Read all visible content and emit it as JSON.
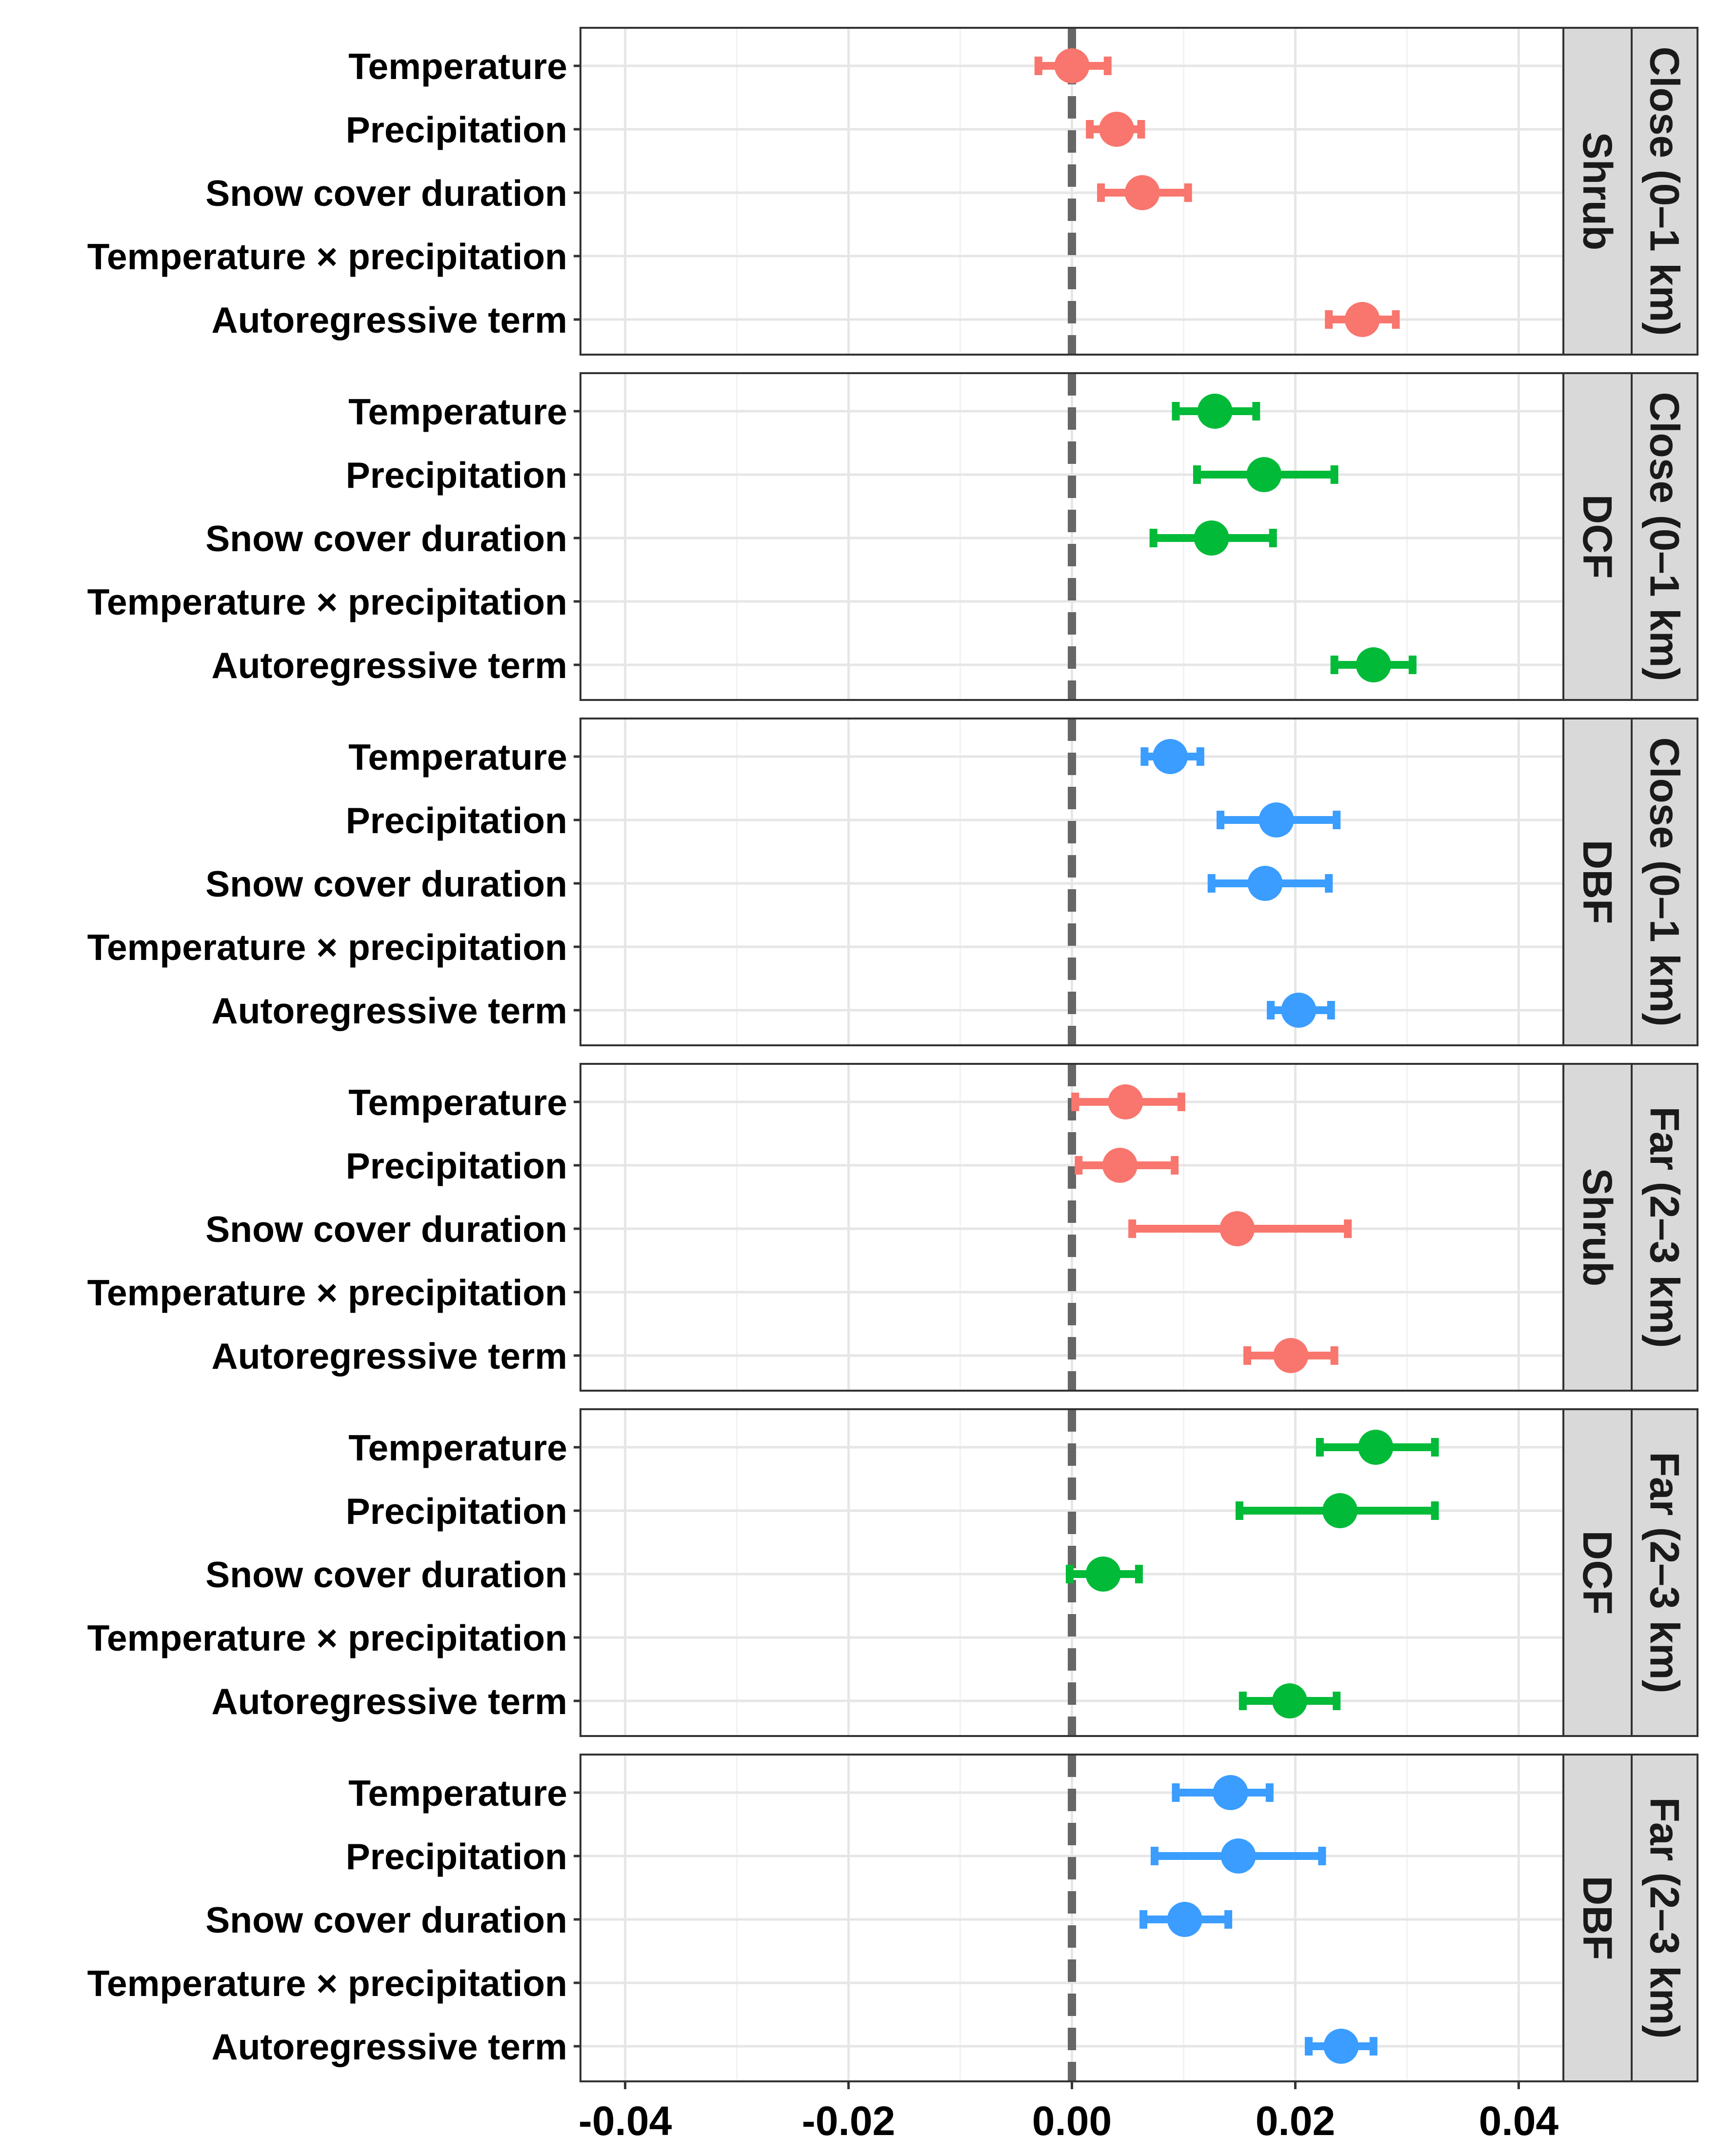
{
  "chart_data": {
    "type": "forest",
    "xlim": [
      -0.044,
      0.044
    ],
    "x_ticks": [
      -0.04,
      -0.02,
      0.0,
      0.02,
      0.04
    ],
    "x_tick_labels": [
      "-0.04",
      "-0.02",
      "0.00",
      "0.02",
      "0.04"
    ],
    "reference_line": 0.0,
    "grid": true,
    "terms": [
      "Temperature",
      "Precipitation",
      "Snow cover duration",
      "Temperature × precipitation",
      "Autoregressive term"
    ],
    "colors": {
      "Shrub": "#F8766D",
      "DCF": "#00BA38",
      "DBF": "#3A9DFF"
    },
    "panels": [
      {
        "vegetation": "Shrub",
        "distance": "Close (0–1 km)",
        "color": "#F8766D",
        "points": [
          {
            "term": "Temperature",
            "estimate": 0.0,
            "lower": -0.003,
            "upper": 0.0032
          },
          {
            "term": "Precipitation",
            "estimate": 0.004,
            "lower": 0.0016,
            "upper": 0.0062
          },
          {
            "term": "Snow cover duration",
            "estimate": 0.0063,
            "lower": 0.0026,
            "upper": 0.0104
          },
          {
            "term": "Temperature × precipitation",
            "estimate": null,
            "lower": null,
            "upper": null
          },
          {
            "term": "Autoregressive term",
            "estimate": 0.026,
            "lower": 0.023,
            "upper": 0.029
          }
        ]
      },
      {
        "vegetation": "DCF",
        "distance": "Close (0–1 km)",
        "color": "#00BA38",
        "points": [
          {
            "term": "Temperature",
            "estimate": 0.0128,
            "lower": 0.0093,
            "upper": 0.0165
          },
          {
            "term": "Precipitation",
            "estimate": 0.0172,
            "lower": 0.0112,
            "upper": 0.0235
          },
          {
            "term": "Snow cover duration",
            "estimate": 0.0125,
            "lower": 0.0073,
            "upper": 0.018
          },
          {
            "term": "Temperature × precipitation",
            "estimate": null,
            "lower": null,
            "upper": null
          },
          {
            "term": "Autoregressive term",
            "estimate": 0.027,
            "lower": 0.0235,
            "upper": 0.0305
          }
        ]
      },
      {
        "vegetation": "DBF",
        "distance": "Close (0–1 km)",
        "color": "#3A9DFF",
        "points": [
          {
            "term": "Temperature",
            "estimate": 0.0088,
            "lower": 0.0065,
            "upper": 0.0115
          },
          {
            "term": "Precipitation",
            "estimate": 0.0183,
            "lower": 0.0133,
            "upper": 0.0237
          },
          {
            "term": "Snow cover duration",
            "estimate": 0.0173,
            "lower": 0.0125,
            "upper": 0.023
          },
          {
            "term": "Temperature × precipitation",
            "estimate": null,
            "lower": null,
            "upper": null
          },
          {
            "term": "Autoregressive term",
            "estimate": 0.0203,
            "lower": 0.0178,
            "upper": 0.0232
          }
        ]
      },
      {
        "vegetation": "Shrub",
        "distance": "Far (2–3 km)",
        "color": "#F8766D",
        "points": [
          {
            "term": "Temperature",
            "estimate": 0.0048,
            "lower": 0.0003,
            "upper": 0.0098
          },
          {
            "term": "Precipitation",
            "estimate": 0.0043,
            "lower": 0.0006,
            "upper": 0.0092
          },
          {
            "term": "Snow cover duration",
            "estimate": 0.0148,
            "lower": 0.0054,
            "upper": 0.0247
          },
          {
            "term": "Temperature × precipitation",
            "estimate": null,
            "lower": null,
            "upper": null
          },
          {
            "term": "Autoregressive term",
            "estimate": 0.0196,
            "lower": 0.0157,
            "upper": 0.0235
          }
        ]
      },
      {
        "vegetation": "DCF",
        "distance": "Far (2–3 km)",
        "color": "#00BA38",
        "points": [
          {
            "term": "Temperature",
            "estimate": 0.0272,
            "lower": 0.0222,
            "upper": 0.0325
          },
          {
            "term": "Precipitation",
            "estimate": 0.024,
            "lower": 0.015,
            "upper": 0.0325
          },
          {
            "term": "Snow cover duration",
            "estimate": 0.0028,
            "lower": -0.0002,
            "upper": 0.006
          },
          {
            "term": "Temperature × precipitation",
            "estimate": null,
            "lower": null,
            "upper": null
          },
          {
            "term": "Autoregressive term",
            "estimate": 0.0195,
            "lower": 0.0153,
            "upper": 0.0237
          }
        ]
      },
      {
        "vegetation": "DBF",
        "distance": "Far (2–3 km)",
        "color": "#3A9DFF",
        "points": [
          {
            "term": "Temperature",
            "estimate": 0.0142,
            "lower": 0.0093,
            "upper": 0.0177
          },
          {
            "term": "Precipitation",
            "estimate": 0.0149,
            "lower": 0.0074,
            "upper": 0.0224
          },
          {
            "term": "Snow cover duration",
            "estimate": 0.0101,
            "lower": 0.0064,
            "upper": 0.014
          },
          {
            "term": "Temperature × precipitation",
            "estimate": null,
            "lower": null,
            "upper": null
          },
          {
            "term": "Autoregressive term",
            "estimate": 0.0241,
            "lower": 0.0212,
            "upper": 0.027
          }
        ]
      }
    ]
  }
}
